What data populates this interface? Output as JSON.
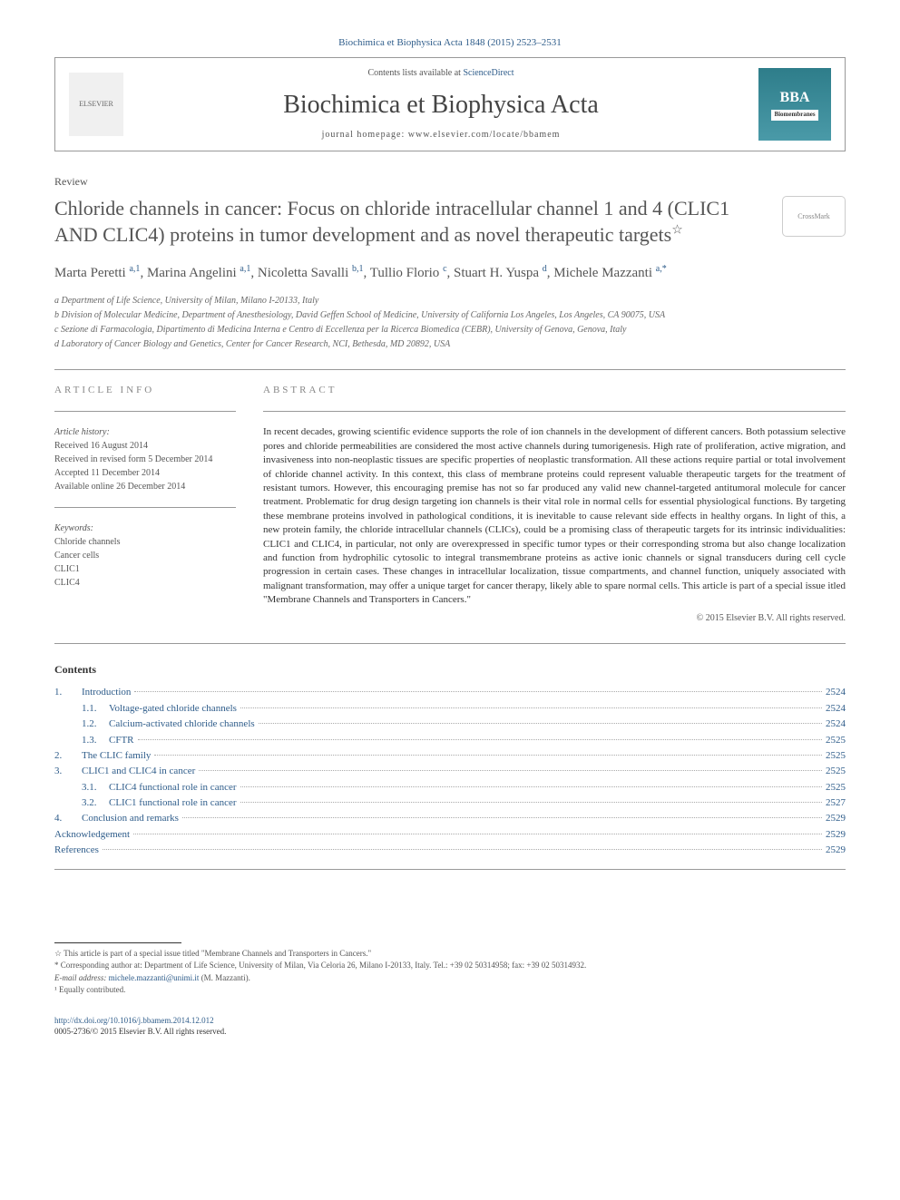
{
  "journal_ref": "Biochimica et Biophysica Acta 1848 (2015) 2523–2531",
  "header": {
    "contents_prefix": "Contents lists available at ",
    "contents_link": "ScienceDirect",
    "journal_title": "Biochimica et Biophysica Acta",
    "homepage_prefix": "journal homepage: ",
    "homepage": "www.elsevier.com/locate/bbamem",
    "elsevier": "ELSEVIER",
    "bba_logo": "BBA",
    "bba_sub": "Biomembranes"
  },
  "article_type": "Review",
  "crossmark": "CrossMark",
  "title": "Chloride channels in cancer: Focus on chloride intracellular channel 1 and 4 (CLIC1 AND CLIC4) proteins in tumor development and as novel therapeutic targets",
  "title_star": "☆",
  "authors_html": "Marta Peretti <sup>a,1</sup>, Marina Angelini <sup>a,1</sup>, Nicoletta Savalli <sup>b,1</sup>, Tullio Florio <sup>c</sup>, Stuart H. Yuspa <sup>d</sup>, Michele Mazzanti <sup>a,*</sup>",
  "affiliations": [
    "a Department of Life Science, University of Milan, Milano I-20133, Italy",
    "b Division of Molecular Medicine, Department of Anesthesiology, David Geffen School of Medicine, University of California Los Angeles, Los Angeles, CA 90075, USA",
    "c Sezione di Farmacologia, Dipartimento di Medicina Interna e Centro di Eccellenza per la Ricerca Biomedica (CEBR), University of Genova, Genova, Italy",
    "d Laboratory of Cancer Biology and Genetics, Center for Cancer Research, NCI, Bethesda, MD 20892, USA"
  ],
  "info_heading": "ARTICLE INFO",
  "history": {
    "label": "Article history:",
    "received": "Received 16 August 2014",
    "revised": "Received in revised form 5 December 2014",
    "accepted": "Accepted 11 December 2014",
    "online": "Available online 26 December 2014"
  },
  "keywords": {
    "label": "Keywords:",
    "items": [
      "Chloride channels",
      "Cancer cells",
      "CLIC1",
      "CLIC4"
    ]
  },
  "abstract_heading": "ABSTRACT",
  "abstract": "In recent decades, growing scientific evidence supports the role of ion channels in the development of different cancers. Both potassium selective pores and chloride permeabilities are considered the most active channels during tumorigenesis. High rate of proliferation, active migration, and invasiveness into non-neoplastic tissues are specific properties of neoplastic transformation. All these actions require partial or total involvement of chloride channel activity. In this context, this class of membrane proteins could represent valuable therapeutic targets for the treatment of resistant tumors. However, this encouraging premise has not so far produced any valid new channel-targeted antitumoral molecule for cancer treatment. Problematic for drug design targeting ion channels is their vital role in normal cells for essential physiological functions. By targeting these membrane proteins involved in pathological conditions, it is inevitable to cause relevant side effects in healthy organs. In light of this, a new protein family, the chloride intracellular channels (CLICs), could be a promising class of therapeutic targets for its intrinsic individualities: CLIC1 and CLIC4, in particular, not only are overexpressed in specific tumor types or their corresponding stroma but also change localization and function from hydrophilic cytosolic to integral transmembrane proteins as active ionic channels or signal transducers during cell cycle progression in certain cases. These changes in intracellular localization, tissue compartments, and channel function, uniquely associated with malignant transformation, may offer a unique target for cancer therapy, likely able to spare normal cells. This article is part of a special issue itled \"Membrane Channels and Transporters in Cancers.\"",
  "copyright": "© 2015 Elsevier B.V. All rights reserved.",
  "contents_heading": "Contents",
  "toc": [
    {
      "num": "1.",
      "label": "Introduction",
      "page": "2524",
      "sub": false
    },
    {
      "num": "1.1.",
      "label": "Voltage-gated chloride channels",
      "page": "2524",
      "sub": true
    },
    {
      "num": "1.2.",
      "label": "Calcium-activated chloride channels",
      "page": "2524",
      "sub": true
    },
    {
      "num": "1.3.",
      "label": "CFTR",
      "page": "2525",
      "sub": true
    },
    {
      "num": "2.",
      "label": "The CLIC family",
      "page": "2525",
      "sub": false
    },
    {
      "num": "3.",
      "label": "CLIC1 and CLIC4 in cancer",
      "page": "2525",
      "sub": false
    },
    {
      "num": "3.1.",
      "label": "CLIC4 functional role in cancer",
      "page": "2525",
      "sub": true
    },
    {
      "num": "3.2.",
      "label": "CLIC1 functional role in cancer",
      "page": "2527",
      "sub": true
    },
    {
      "num": "4.",
      "label": "Conclusion and remarks",
      "page": "2529",
      "sub": false
    },
    {
      "num": "",
      "label": "Acknowledgement",
      "page": "2529",
      "sub": false
    },
    {
      "num": "",
      "label": "References",
      "page": "2529",
      "sub": false
    }
  ],
  "footer": {
    "star_note": "☆ This article is part of a special issue titled \"Membrane Channels and Transporters in Cancers.\"",
    "corresponding": "* Corresponding author at: Department of Life Science, University of Milan, Via Celoria 26, Milano I-20133, Italy. Tel.: +39 02 50314958; fax: +39 02 50314932.",
    "email_label": "E-mail address: ",
    "email": "michele.mazzanti@unimi.it",
    "email_suffix": " (M. Mazzanti).",
    "equal": "¹ Equally contributed."
  },
  "doi": {
    "url": "http://dx.doi.org/10.1016/j.bbamem.2014.12.012",
    "issn": "0005-2736/© 2015 Elsevier B.V. All rights reserved."
  }
}
